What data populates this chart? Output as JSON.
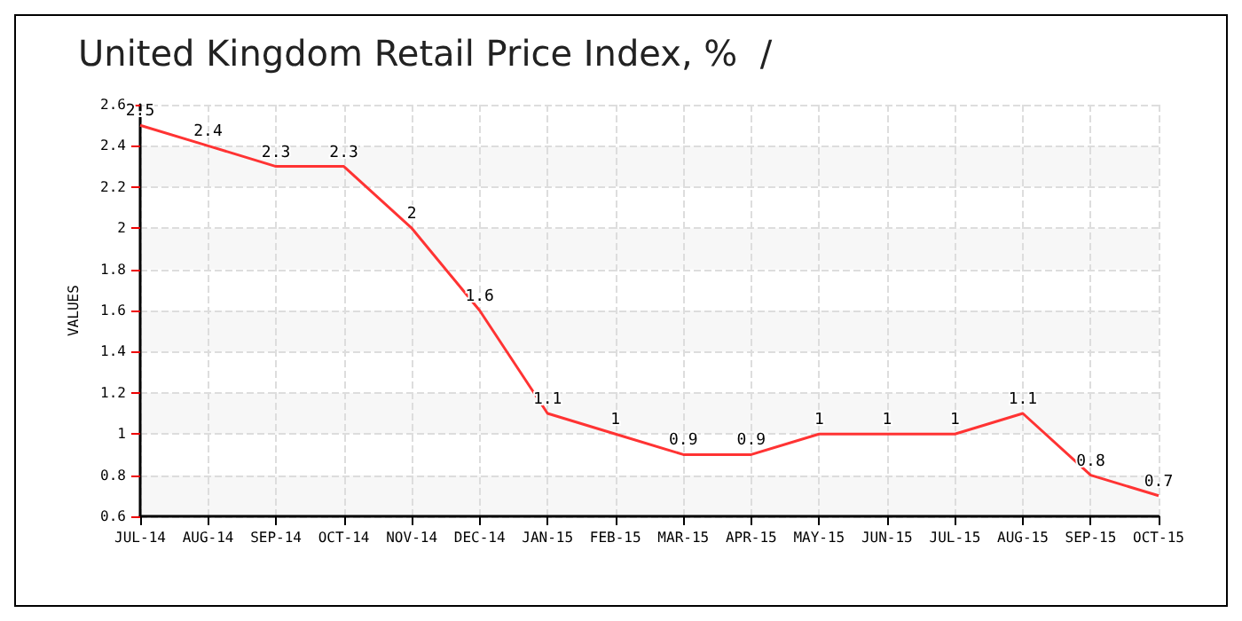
{
  "chart_data": {
    "type": "line",
    "title": "United Kingdom Retail Price Index, %  /",
    "ylabel": "VALUES",
    "categories": [
      "JUL-14",
      "AUG-14",
      "SEP-14",
      "OCT-14",
      "NOV-14",
      "DEC-14",
      "JAN-15",
      "FEB-15",
      "MAR-15",
      "APR-15",
      "MAY-15",
      "JUN-15",
      "JUL-15",
      "AUG-15",
      "SEP-15",
      "OCT-15"
    ],
    "series": [
      {
        "color": "#ff3333",
        "values": [
          2.5,
          2.4,
          2.3,
          2.3,
          2,
          1.6,
          1.1,
          1,
          0.9,
          0.9,
          1,
          1,
          1,
          1.1,
          0.8,
          0.7
        ]
      }
    ],
    "ylim": [
      0.6,
      2.6
    ],
    "yticks": [
      0.6,
      0.8,
      1,
      1.2,
      1.4,
      1.6,
      1.8,
      2,
      2.2,
      2.4,
      2.6
    ],
    "grid": true,
    "data_labels": true,
    "marker": "none",
    "line_style": "solid"
  }
}
